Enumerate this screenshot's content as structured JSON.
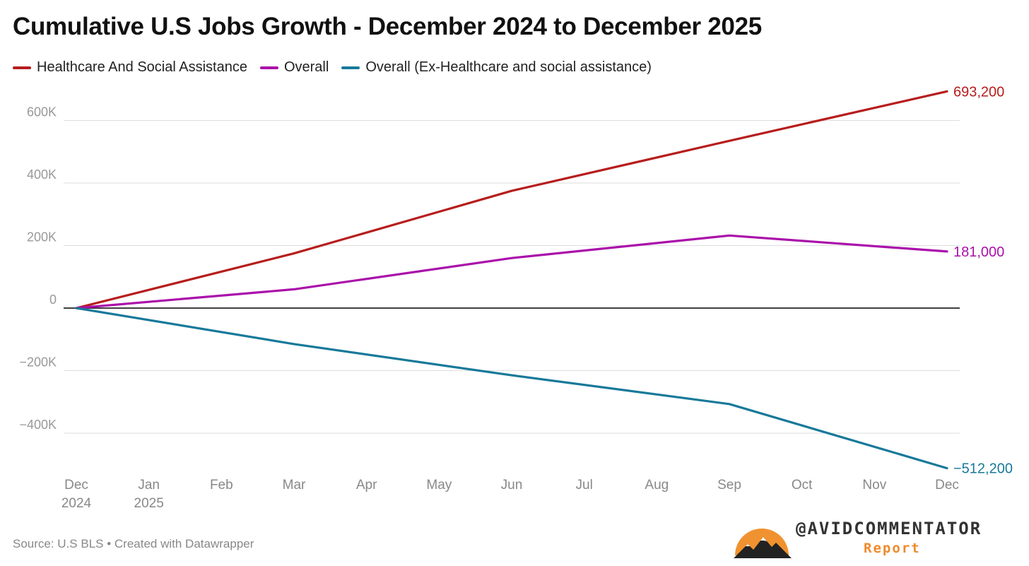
{
  "title": "Cumulative U.S Jobs Growth - December 2024 to December 2025",
  "legend": [
    {
      "label": "Healthcare And Social Assistance",
      "color": "#b71d1d"
    },
    {
      "label": "Overall",
      "color": "#aa10aa"
    },
    {
      "label": "Overall (Ex-Healthcare and social assistance)",
      "color": "#17799a"
    }
  ],
  "source": "Source: U.S BLS • Created with Datawrapper",
  "brand": {
    "name": "@AVIDCOMMENTATOR",
    "sub": "Report"
  },
  "chart_data": {
    "type": "line",
    "title": "Cumulative U.S Jobs Growth - December 2024 to December 2025",
    "x": [
      0,
      1,
      2,
      3,
      4,
      5,
      6,
      7,
      8,
      9,
      10,
      11,
      12
    ],
    "x_tick_labels": [
      [
        "Dec",
        "2024"
      ],
      [
        "Jan",
        "2025"
      ],
      [
        "Feb"
      ],
      [
        "Mar"
      ],
      [
        "Apr"
      ],
      [
        "May"
      ],
      [
        "Jun"
      ],
      [
        "Jul"
      ],
      [
        "Aug"
      ],
      [
        "Sep"
      ],
      [
        "Oct"
      ],
      [
        "Nov"
      ],
      [
        "Dec"
      ]
    ],
    "y_ticks": [
      600000,
      400000,
      200000,
      0,
      -200000,
      -400000
    ],
    "y_tick_labels": [
      "600K",
      "400K",
      "200K",
      "0",
      "−200K",
      "−400K"
    ],
    "ylim": [
      -512200,
      693200
    ],
    "series": [
      {
        "name": "Healthcare And Social Assistance",
        "color": "#b71d1d",
        "points": [
          [
            0,
            0
          ],
          [
            3,
            175000
          ],
          [
            6,
            375000
          ],
          [
            9,
            535000
          ],
          [
            12,
            693200
          ]
        ],
        "end_label": "693,200"
      },
      {
        "name": "Overall",
        "color": "#aa10aa",
        "points": [
          [
            0,
            0
          ],
          [
            3,
            60000
          ],
          [
            6,
            160000
          ],
          [
            9,
            232000
          ],
          [
            12,
            181000
          ]
        ],
        "end_label": "181,000"
      },
      {
        "name": "Overall (Ex-Healthcare and social assistance)",
        "color": "#17799a",
        "points": [
          [
            0,
            0
          ],
          [
            3,
            -115000
          ],
          [
            6,
            -215000
          ],
          [
            9,
            -307000
          ],
          [
            12,
            -512200
          ]
        ],
        "end_label": "−512,200"
      }
    ]
  }
}
